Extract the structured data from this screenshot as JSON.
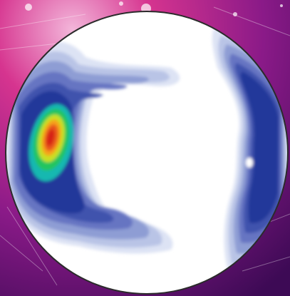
{
  "figure": {
    "kind": "pole figure contour plot over decorative purple background",
    "colors": {
      "background_base": "#8a1a88",
      "background_deep": "#3d0a55",
      "background_pink": "#d6348f",
      "circle_outline": "#2b2b2b",
      "contour_levels": [
        "#ffffff",
        "#dde3f4",
        "#b9c4e6",
        "#8e9dd4",
        "#6675c2",
        "#3f52ad",
        "#24399a",
        "#14b8b0",
        "#22c55e",
        "#c8e022",
        "#f6a21a",
        "#e8561b",
        "#d62418"
      ]
    },
    "lobes": [
      {
        "name": "left-main-concentration",
        "peak_level": 13
      },
      {
        "name": "right-edge-band",
        "peak_level": 7
      },
      {
        "name": "top-arm",
        "peak_level": 5
      },
      {
        "name": "bottom-arm",
        "peak_level": 5
      }
    ]
  }
}
